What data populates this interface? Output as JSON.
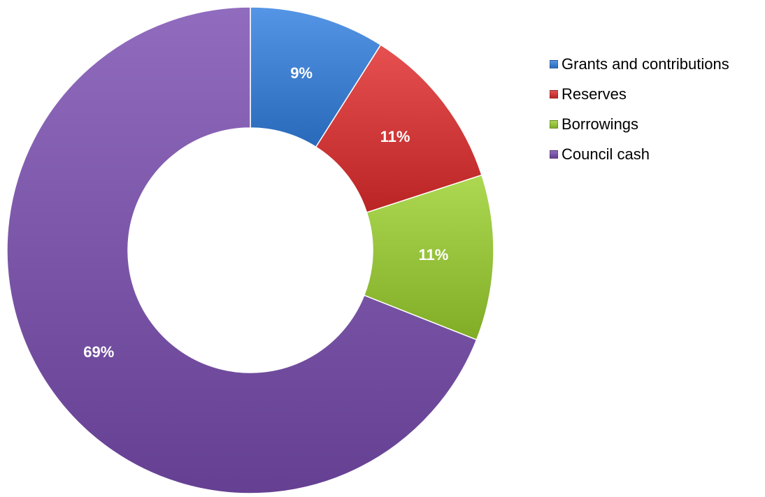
{
  "chart_data": {
    "type": "pie",
    "donut": true,
    "title": "",
    "legend_position": "right",
    "categories": [
      "Grants and contributions",
      "Reserves",
      "Borrowings",
      "Council cash"
    ],
    "values": [
      9,
      11,
      11,
      69
    ],
    "labels": [
      "9%",
      "11%",
      "11%",
      "69%"
    ],
    "colors": [
      "#3f7fd0",
      "#d03a3a",
      "#96c23c",
      "#7b56a8"
    ],
    "value_unit": "%"
  }
}
